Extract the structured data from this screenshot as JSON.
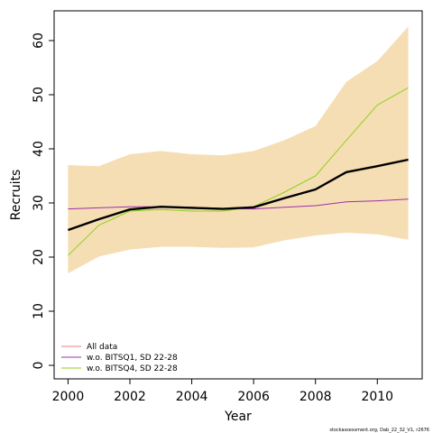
{
  "chart_data": {
    "type": "line",
    "xlabel": "Year",
    "ylabel": "Recruits",
    "xlim": [
      1999.55,
      2011.45
    ],
    "ylim": [
      -2.5,
      65.5
    ],
    "x_ticks": [
      2000,
      2002,
      2004,
      2006,
      2008,
      2010
    ],
    "y_ticks": [
      0,
      10,
      20,
      30,
      40,
      50,
      60
    ],
    "grid": false,
    "legend_position": "bottom-left",
    "x": [
      2000,
      2001,
      2002,
      2003,
      2004,
      2005,
      2006,
      2007,
      2008,
      2009,
      2010,
      2011
    ],
    "band": {
      "color": "#f5deb3",
      "upper": [
        37.0,
        36.8,
        39.0,
        39.6,
        39.0,
        38.8,
        39.6,
        41.6,
        44.2,
        52.4,
        56.2,
        62.6
      ],
      "lower": [
        17.0,
        20.1,
        21.4,
        21.9,
        21.9,
        21.7,
        21.8,
        23.1,
        24.0,
        24.5,
        24.2,
        23.2
      ]
    },
    "series": [
      {
        "name": "All data",
        "color": "#000000",
        "width": 2.4,
        "in_legend": false,
        "values": [
          25.0,
          27.0,
          28.8,
          29.3,
          29.1,
          28.9,
          29.2,
          30.9,
          32.5,
          35.7,
          36.8,
          38.0
        ]
      },
      {
        "name": "w.o. BITSQ1, SD 22-28",
        "color": "#9b2fae",
        "width": 1,
        "in_legend": true,
        "values": [
          28.9,
          29.1,
          29.3,
          29.3,
          29.2,
          29.0,
          28.9,
          29.2,
          29.5,
          30.2,
          30.4,
          30.7
        ]
      },
      {
        "name": "w.o. BITSQ4, SD 22-28",
        "color": "#8fd11f",
        "width": 1,
        "in_legend": true,
        "values": [
          20.3,
          25.9,
          28.5,
          28.8,
          28.5,
          28.5,
          29.3,
          32.0,
          35.0,
          41.6,
          48.1,
          51.3
        ]
      }
    ],
    "legend": [
      {
        "label": "All data",
        "color": "#f28080"
      },
      {
        "label": "w.o. BITSQ1, SD 22-28",
        "color": "#9b2fae"
      },
      {
        "label": "w.o. BITSQ4, SD 22-28",
        "color": "#8fd11f"
      }
    ],
    "footer": "stockassessment.org, Dab_22_32_V1, r2676"
  }
}
